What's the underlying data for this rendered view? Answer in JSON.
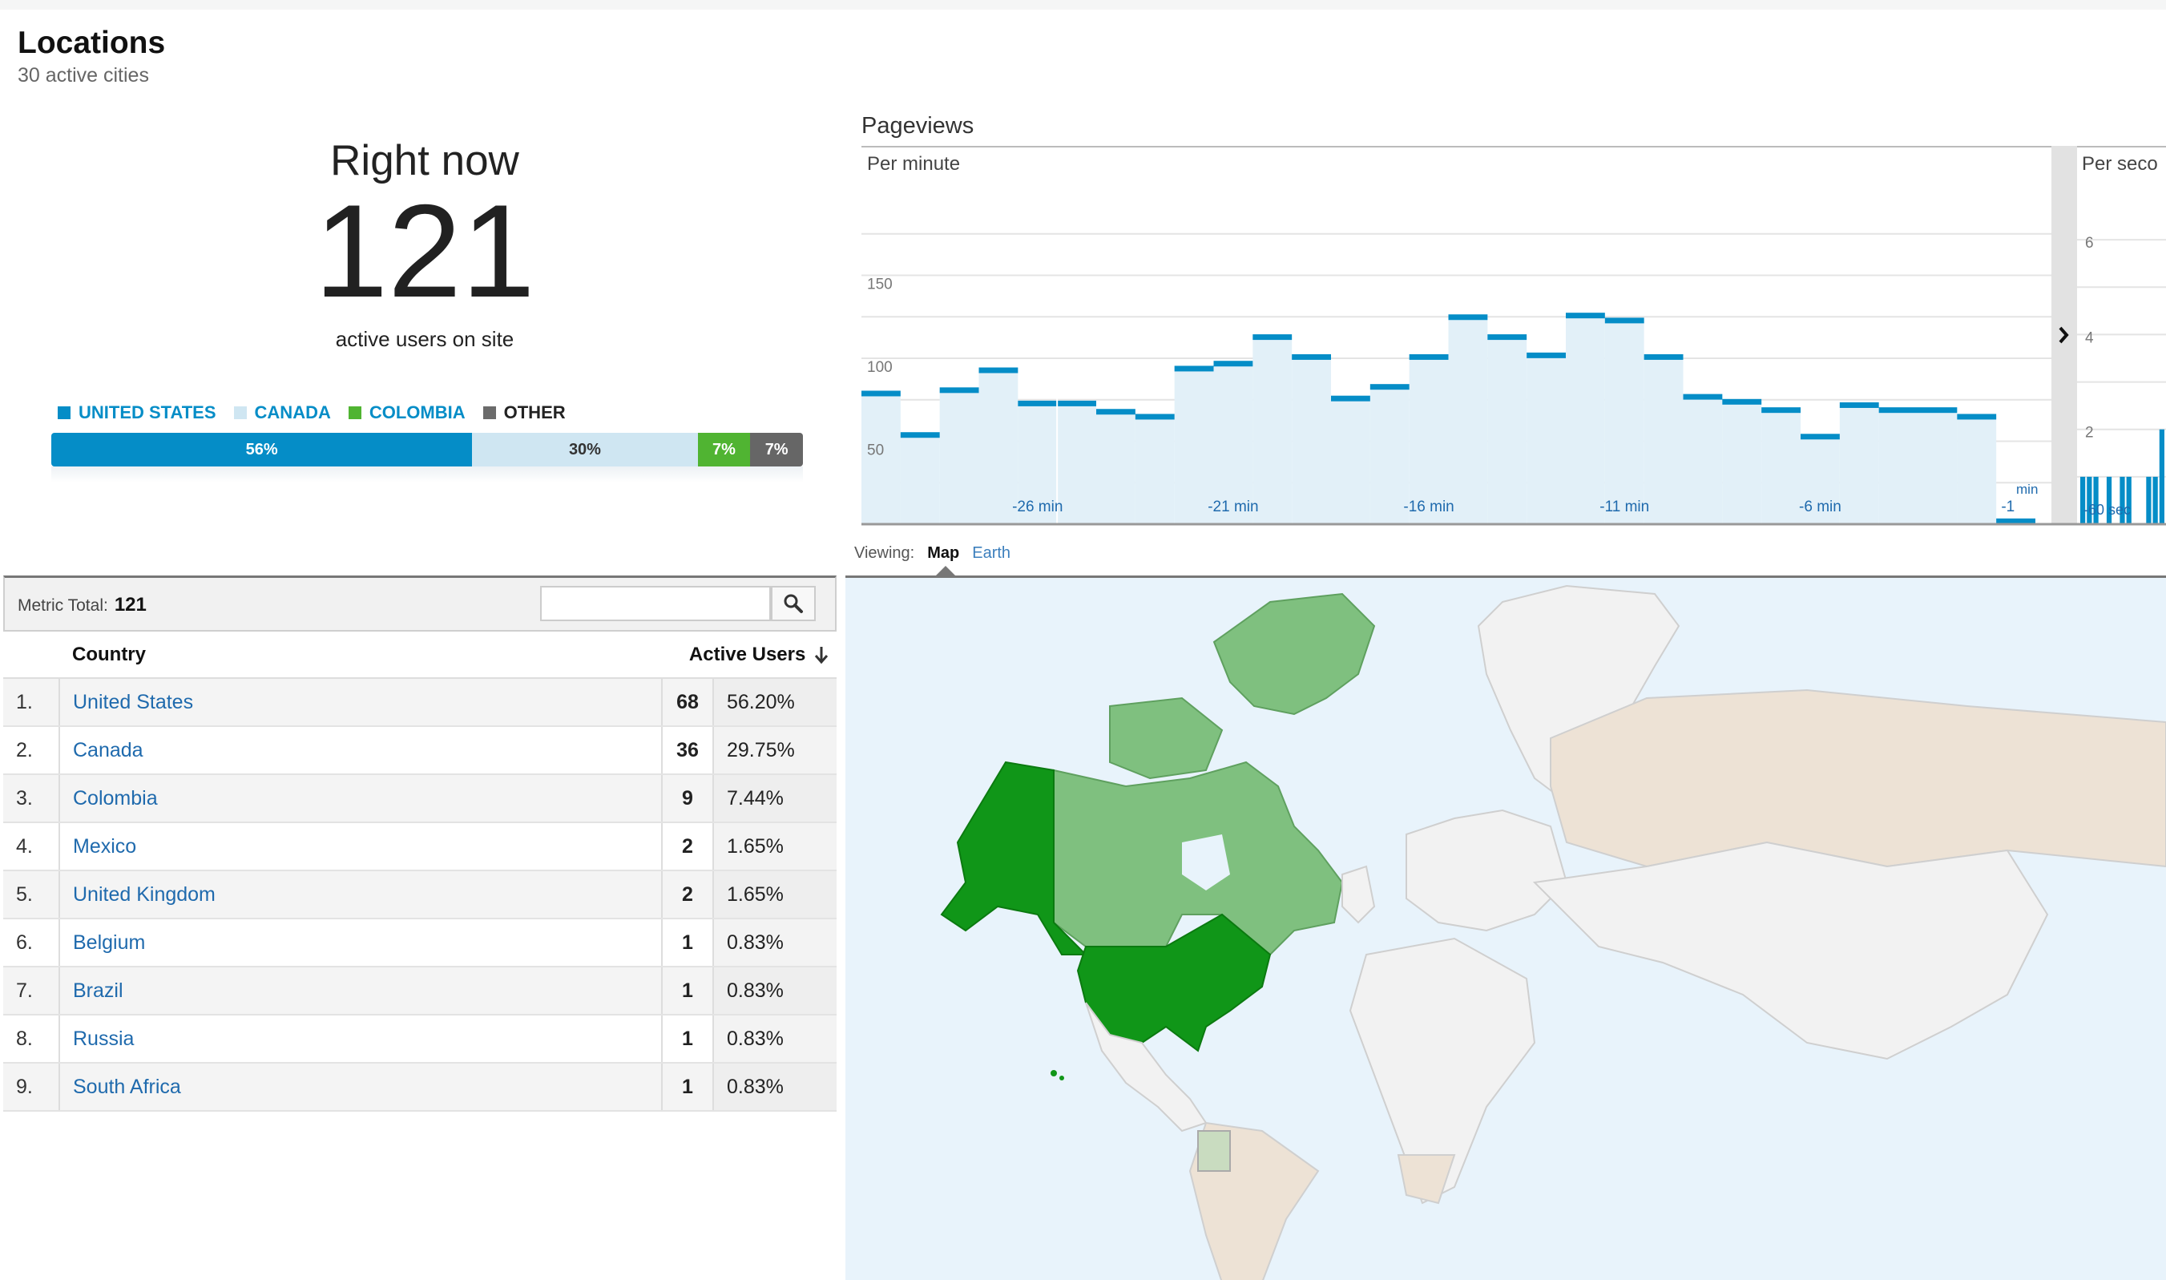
{
  "header": {
    "title": "Locations",
    "subtitle": "30 active cities"
  },
  "right_now": {
    "label": "Right now",
    "count": "121",
    "caption": "active users on site"
  },
  "legend": [
    {
      "label": "UNITED STATES",
      "color": "#058dc7"
    },
    {
      "label": "CANADA",
      "color": "#cfe6f2"
    },
    {
      "label": "COLOMBIA",
      "color": "#50b432"
    },
    {
      "label": "OTHER",
      "color": "#6b6b6b"
    }
  ],
  "share_bar": [
    {
      "label": "56%",
      "value": 0.56,
      "color": "#058dc7",
      "text_color": "#ffffff"
    },
    {
      "label": "30%",
      "value": 0.3,
      "color": "#cfe6f2",
      "text_color": "#333333"
    },
    {
      "label": "7%",
      "value": 0.07,
      "color": "#50b432",
      "text_color": "#ffffff"
    },
    {
      "label": "7%",
      "value": 0.07,
      "color": "#666666",
      "text_color": "#ffffff"
    }
  ],
  "pageviews": {
    "title": "Pageviews",
    "per_minute_label": "Per minute",
    "per_second_label": "Per seco",
    "expand_icon": "chevron-right-icon"
  },
  "chart_data": [
    {
      "type": "bar",
      "title": "Per minute",
      "ylim": [
        0,
        200
      ],
      "y_ticks": [
        "150",
        "100",
        "50"
      ],
      "x_tick_labels": [
        "-26 min",
        "-21 min",
        "-16 min",
        "-11 min",
        "-6 min",
        "-1"
      ],
      "extra_label": "min",
      "values": [
        79,
        54,
        81,
        93,
        73,
        73,
        68,
        65,
        94,
        97,
        113,
        101,
        76,
        83,
        101,
        125,
        113,
        102,
        126,
        123,
        101,
        77,
        74,
        69,
        53,
        72,
        69,
        69,
        65,
        2
      ],
      "color": "#058dc7",
      "fill": "#e2f0f8"
    },
    {
      "type": "bar",
      "title": "Per seco",
      "y_ticks": [
        "6",
        "4",
        "2"
      ],
      "ylim": [
        0,
        7
      ],
      "x_tick_labels": [
        "-60 sec"
      ],
      "values": [
        1,
        1,
        1,
        0,
        1,
        0,
        1,
        1,
        0,
        0,
        1,
        1,
        2
      ]
    }
  ],
  "viewing": {
    "label": "Viewing:",
    "tabs": [
      "Map",
      "Earth"
    ],
    "active": "Map"
  },
  "metric": {
    "label": "Metric Total:",
    "value": "121",
    "search_placeholder": "",
    "search_icon": "magnifier-icon"
  },
  "table": {
    "col_country": "Country",
    "col_users": "Active Users",
    "sort_icon": "arrow-down-icon",
    "rows": [
      {
        "idx": "1.",
        "country": "United States",
        "users": "68",
        "pct": "56.20%"
      },
      {
        "idx": "2.",
        "country": "Canada",
        "users": "36",
        "pct": "29.75%"
      },
      {
        "idx": "3.",
        "country": "Colombia",
        "users": "9",
        "pct": "7.44%"
      },
      {
        "idx": "4.",
        "country": "Mexico",
        "users": "2",
        "pct": "1.65%"
      },
      {
        "idx": "5.",
        "country": "United Kingdom",
        "users": "2",
        "pct": "1.65%"
      },
      {
        "idx": "6.",
        "country": "Belgium",
        "users": "1",
        "pct": "0.83%"
      },
      {
        "idx": "7.",
        "country": "Brazil",
        "users": "1",
        "pct": "0.83%"
      },
      {
        "idx": "8.",
        "country": "Russia",
        "users": "1",
        "pct": "0.83%"
      },
      {
        "idx": "9.",
        "country": "South Africa",
        "users": "1",
        "pct": "0.83%"
      }
    ]
  },
  "map": {
    "ocean_color": "#e8f3fb",
    "land_color": "#f2f2f2",
    "border_color": "#cccccc",
    "highlight_colors": {
      "United States": "#109618",
      "Canada": "#7fc07f",
      "Alaska": "#109618",
      "Colombia": "#c9dcc0",
      "Russia": "#ede2d5",
      "Brazil": "#ede2d5",
      "South Africa": "#ede2d5",
      "Mexico": "#ede2d5"
    }
  }
}
